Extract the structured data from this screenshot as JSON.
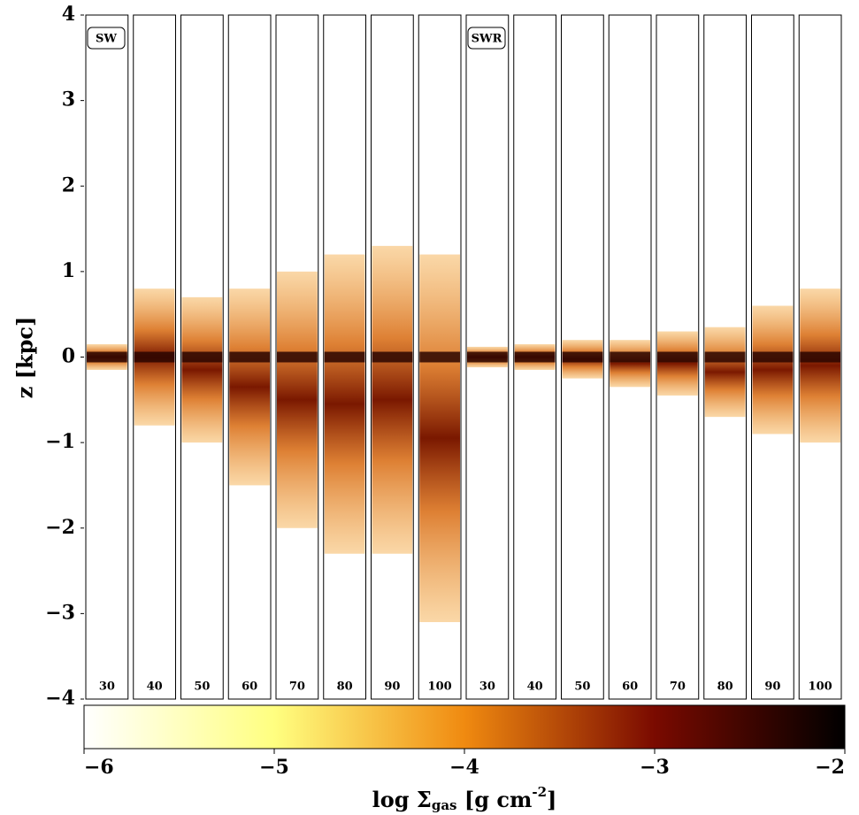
{
  "chart_data": {
    "type": "panels",
    "ylabel": "z [kpc]",
    "ylim": [
      -4,
      4
    ],
    "yticks": [
      {
        "value": -4,
        "label": "−4"
      },
      {
        "value": -3,
        "label": "−3"
      },
      {
        "value": -2,
        "label": "−2"
      },
      {
        "value": -1,
        "label": "−1"
      },
      0,
      1,
      2,
      3,
      4
    ],
    "groups": [
      {
        "name": "SW",
        "labels": [
          "30",
          "40",
          "50",
          "60",
          "70",
          "80",
          "90",
          "100"
        ],
        "z_top": [
          0.15,
          0.8,
          0.7,
          0.8,
          1.0,
          1.2,
          1.3,
          1.2
        ],
        "z_bottom": [
          -0.15,
          -0.8,
          -1.0,
          -1.5,
          -2.0,
          -2.3,
          -2.3,
          -3.1
        ]
      },
      {
        "name": "SWR",
        "labels": [
          "30",
          "40",
          "50",
          "60",
          "70",
          "80",
          "90",
          "100"
        ],
        "z_top": [
          0.12,
          0.15,
          0.2,
          0.2,
          0.3,
          0.35,
          0.6,
          0.8
        ],
        "z_bottom": [
          -0.12,
          -0.15,
          -0.25,
          -0.35,
          -0.45,
          -0.7,
          -0.9,
          -1.0
        ]
      }
    ],
    "colorbar": {
      "label": [
        "log Σ",
        "gas",
        " [g cm",
        "-2",
        "]"
      ],
      "clim": [
        -6,
        -2
      ],
      "cticks": [
        {
          "value": -6,
          "label": "−6"
        },
        {
          "value": -5,
          "label": "−5"
        },
        {
          "value": -4,
          "label": "−4"
        },
        {
          "value": -3,
          "label": "−3"
        },
        {
          "value": -2,
          "label": "−2"
        }
      ]
    }
  }
}
